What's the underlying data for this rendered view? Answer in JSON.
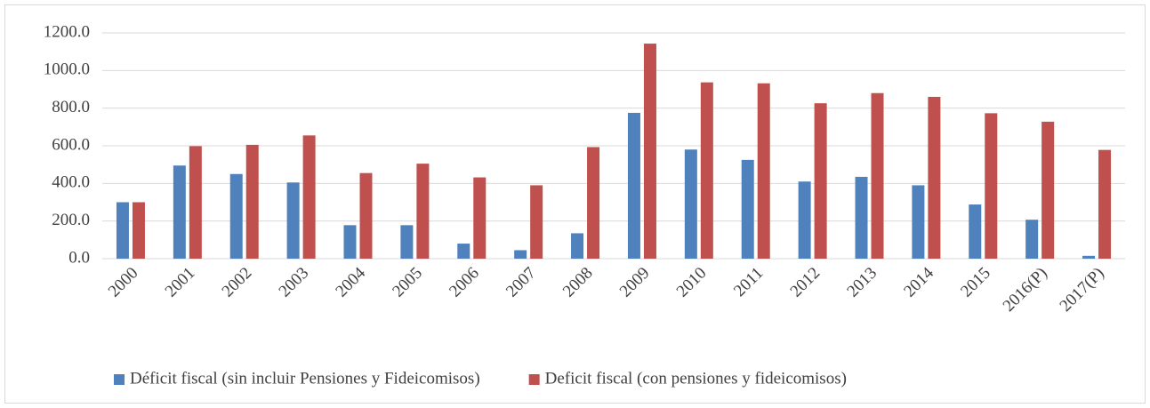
{
  "chart_data": {
    "type": "bar",
    "categories": [
      "2000",
      "2001",
      "2002",
      "2003",
      "2004",
      "2005",
      "2006",
      "2007",
      "2008",
      "2009",
      "2010",
      "2011",
      "2012",
      "2013",
      "2014",
      "2015",
      "2016(P)",
      "2017(P)"
    ],
    "series": [
      {
        "name": "Déficit fiscal (sin incluir Pensiones y Fideicomisos)",
        "color": "#4f81bd",
        "values": [
          300,
          495,
          450,
          405,
          178,
          178,
          80,
          45,
          135,
          775,
          580,
          525,
          410,
          435,
          390,
          288,
          207,
          15
        ]
      },
      {
        "name": "Deficit fiscal (con pensiones y fideicomisos)",
        "color": "#c0504d",
        "values": [
          300,
          598,
          605,
          655,
          455,
          505,
          432,
          390,
          593,
          1143,
          937,
          932,
          826,
          880,
          860,
          773,
          728,
          578
        ]
      }
    ],
    "ylim": [
      0,
      1200
    ],
    "yticks": [
      {
        "value": 0,
        "label": "0.0"
      },
      {
        "value": 200,
        "label": "200.0"
      },
      {
        "value": 400,
        "label": "400.0"
      },
      {
        "value": 600,
        "label": "600.0"
      },
      {
        "value": 800,
        "label": "800.0"
      },
      {
        "value": 1000,
        "label": "1000.0"
      },
      {
        "value": 1200,
        "label": "1200.0"
      }
    ],
    "grid": true,
    "legend": "bottom"
  }
}
